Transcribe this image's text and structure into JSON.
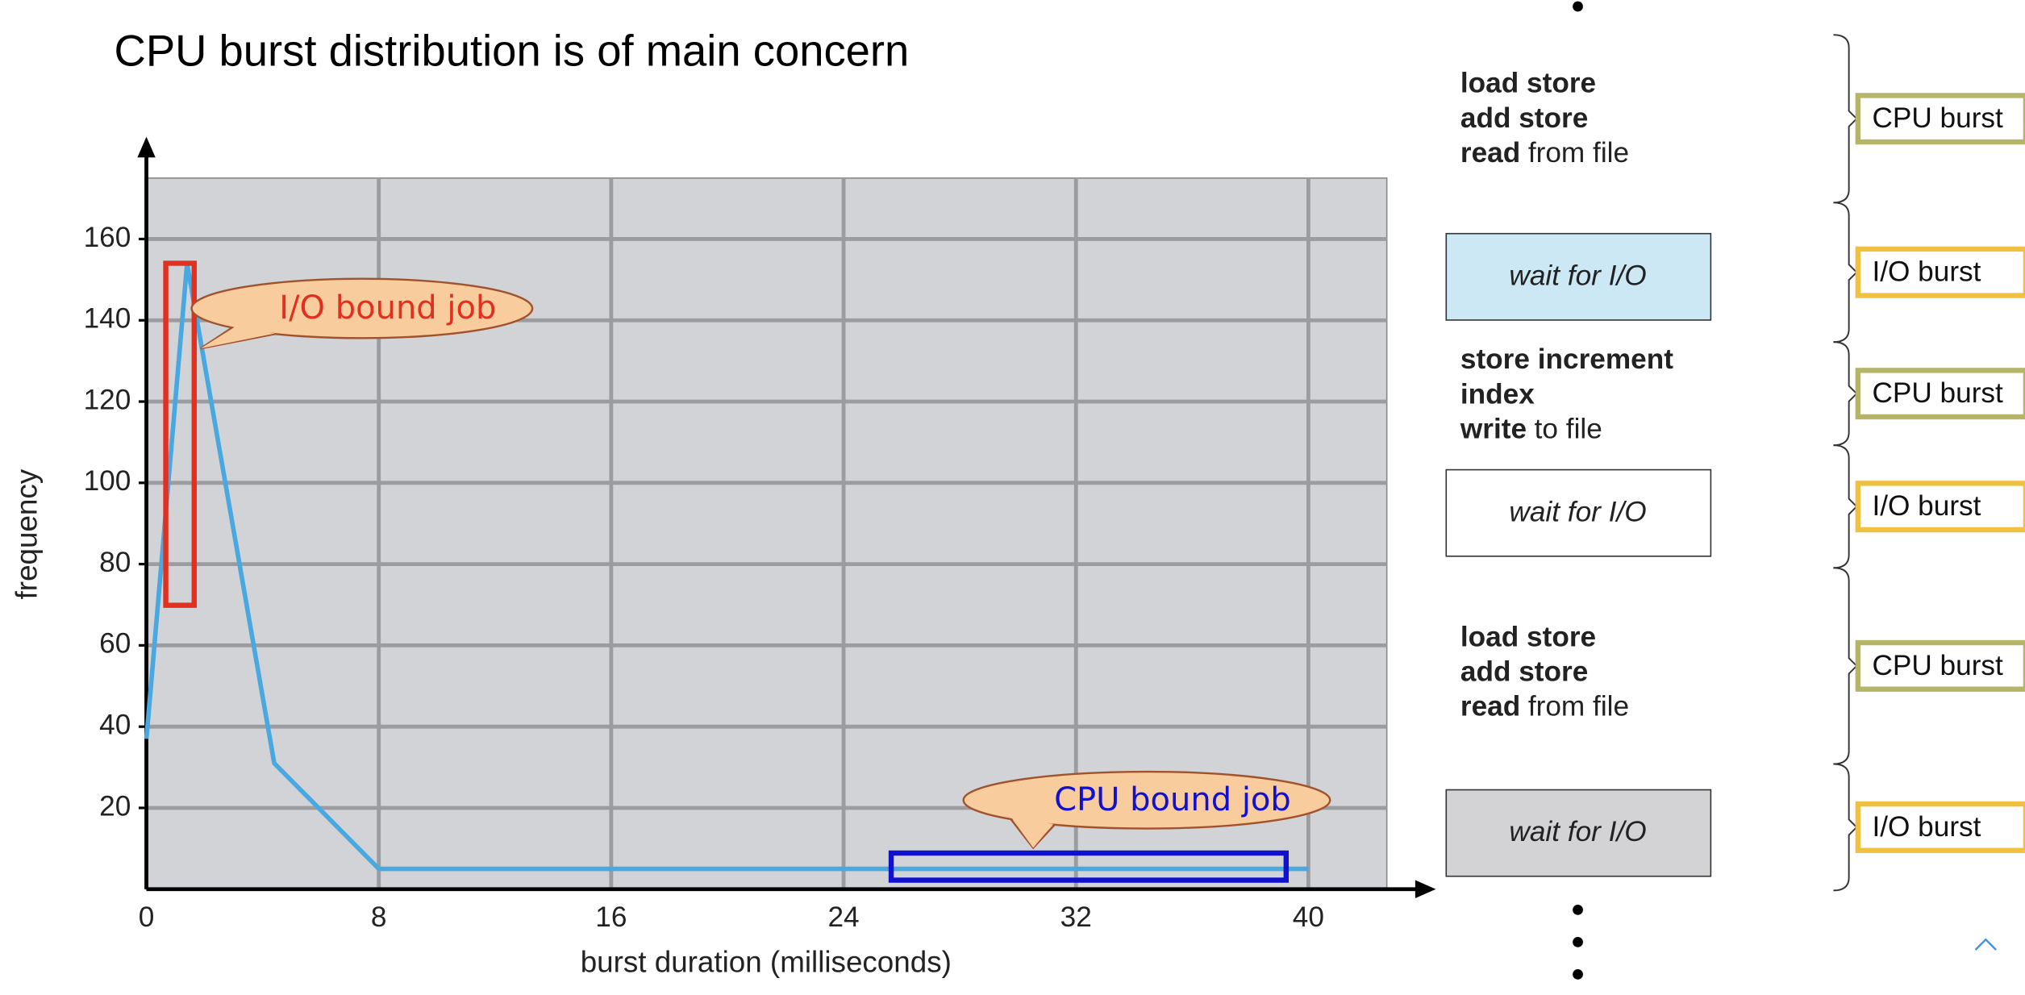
{
  "chart_data": {
    "type": "line",
    "title": "CPU burst distribution is of main concern",
    "xlabel": "burst duration (milliseconds)",
    "ylabel": "frequency",
    "x": [
      0,
      1.4,
      4.4,
      8,
      40
    ],
    "values": [
      37,
      154,
      31,
      5,
      5
    ],
    "color": "#4aa8e0",
    "xlim": [
      0,
      42.7
    ],
    "ylim": [
      0,
      175
    ],
    "xticks": [
      0,
      8,
      16,
      24,
      32,
      40
    ],
    "yticks": [
      20,
      40,
      60,
      80,
      100,
      120,
      140,
      160
    ],
    "grid": true,
    "annotations": [
      "I/O bound job",
      "CPU bound job"
    ]
  },
  "diagram": {
    "code_blocks": [
      [
        {
          "bold": "load store"
        },
        {
          "bold": "add store"
        },
        {
          "bold": "read",
          "rest": "from file"
        }
      ],
      [
        {
          "bold": "store increment"
        },
        {
          "bold": "index"
        },
        {
          "bold": "write",
          "rest": "to file"
        }
      ],
      [
        {
          "bold": "load store"
        },
        {
          "bold": "add store"
        },
        {
          "bold": "read",
          "rest": "from file"
        }
      ]
    ],
    "wait_boxes": [
      "wait for I/O",
      "wait for I/O",
      "wait for I/O"
    ],
    "bursts": [
      "CPU burst",
      "I/O burst",
      "CPU burst",
      "I/O burst",
      "CPU burst",
      "I/O burst"
    ]
  }
}
